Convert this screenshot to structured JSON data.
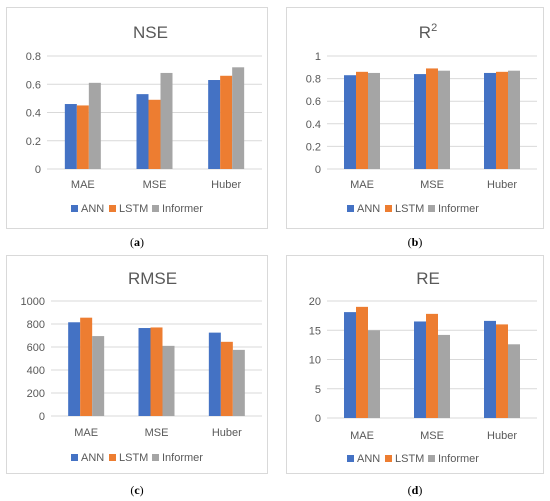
{
  "colors": {
    "ANN": "#4472c4",
    "LSTM": "#ed7d31",
    "Informer": "#a5a5a5",
    "grid": "#d9d9d9",
    "text": "#595959"
  },
  "chart_data": [
    {
      "type": "bar",
      "panel_label": "a",
      "title": "NSE",
      "categories": [
        "MAE",
        "MSE",
        "Huber"
      ],
      "series": [
        {
          "name": "ANN",
          "values": [
            0.46,
            0.53,
            0.63
          ]
        },
        {
          "name": "LSTM",
          "values": [
            0.45,
            0.49,
            0.66
          ]
        },
        {
          "name": "Informer",
          "values": [
            0.61,
            0.68,
            0.72
          ]
        }
      ],
      "ylim": [
        0,
        0.8
      ],
      "yticks": [
        "0",
        "0.2",
        "0.4",
        "0.6",
        "0.8"
      ],
      "grid": true,
      "legend": "bottom"
    },
    {
      "type": "bar",
      "panel_label": "b",
      "title": "R",
      "title_sup": "2",
      "categories": [
        "MAE",
        "MSE",
        "Huber"
      ],
      "series": [
        {
          "name": "ANN",
          "values": [
            0.83,
            0.84,
            0.85
          ]
        },
        {
          "name": "LSTM",
          "values": [
            0.86,
            0.89,
            0.86
          ]
        },
        {
          "name": "Informer",
          "values": [
            0.85,
            0.87,
            0.87
          ]
        }
      ],
      "ylim": [
        0,
        1
      ],
      "yticks": [
        "0",
        "0.2",
        "0.4",
        "0.6",
        "0.8",
        "1"
      ],
      "grid": true,
      "legend": "bottom"
    },
    {
      "type": "bar",
      "panel_label": "c",
      "title": "RMSE",
      "categories": [
        "MAE",
        "MSE",
        "Huber"
      ],
      "series": [
        {
          "name": "ANN",
          "values": [
            815,
            765,
            725
          ]
        },
        {
          "name": "LSTM",
          "values": [
            855,
            770,
            645
          ]
        },
        {
          "name": "Informer",
          "values": [
            695,
            610,
            575
          ]
        }
      ],
      "ylim": [
        0,
        1000
      ],
      "yticks": [
        "0",
        "200",
        "400",
        "600",
        "800",
        "1000"
      ],
      "grid": true,
      "legend": "bottom"
    },
    {
      "type": "bar",
      "panel_label": "d",
      "title": "RE",
      "categories": [
        "MAE",
        "MSE",
        "Huber"
      ],
      "series": [
        {
          "name": "ANN",
          "values": [
            18.1,
            16.5,
            16.6
          ]
        },
        {
          "name": "LSTM",
          "values": [
            19.0,
            17.8,
            16.0
          ]
        },
        {
          "name": "Informer",
          "values": [
            15.0,
            14.2,
            12.6
          ]
        }
      ],
      "ylim": [
        0,
        20
      ],
      "yticks": [
        "0",
        "5",
        "10",
        "15",
        "20"
      ],
      "grid": true,
      "legend": "bottom"
    }
  ]
}
